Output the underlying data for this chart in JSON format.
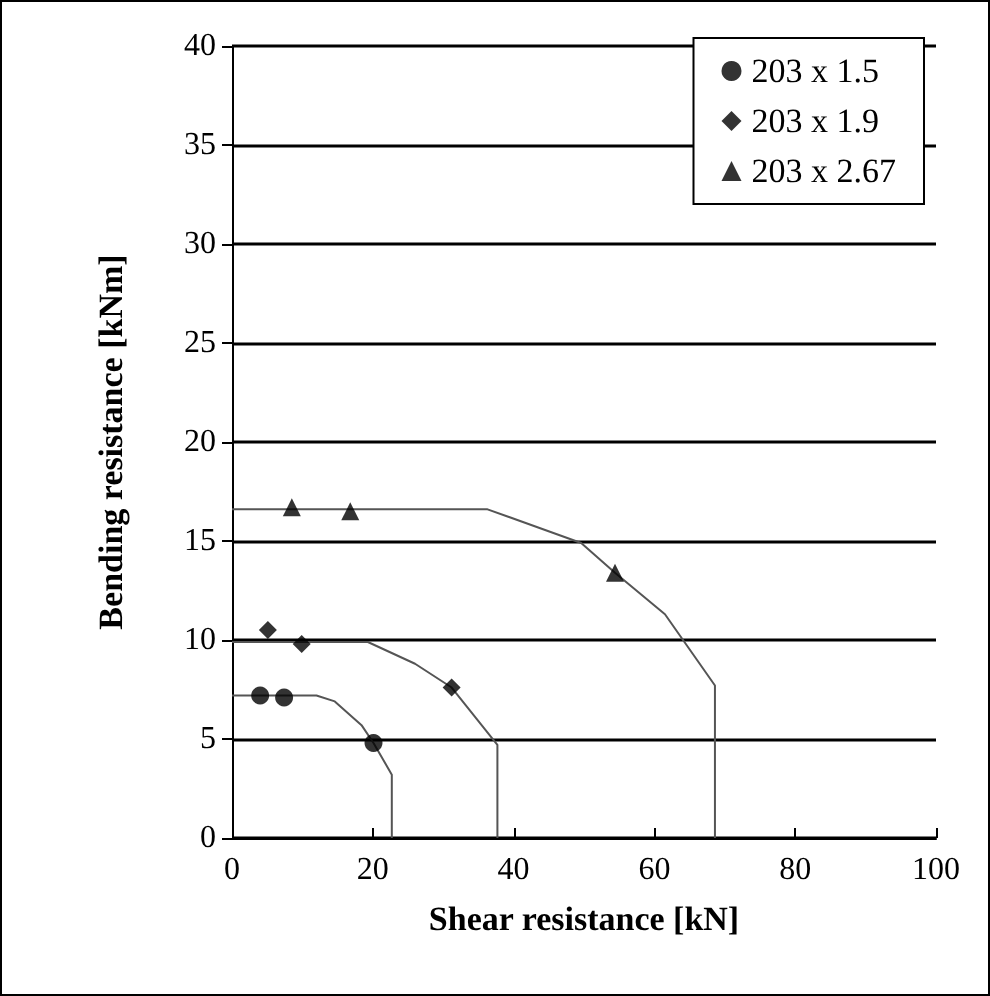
{
  "chart_data": {
    "type": "scatter",
    "xlabel": "Shear resistance [kN]",
    "ylabel": "Bending resistance [kNm]",
    "xlim": [
      0,
      100
    ],
    "xticks": [
      0,
      20,
      40,
      60,
      80,
      100
    ],
    "ylim": [
      0,
      40
    ],
    "yticks": [
      0,
      5,
      10,
      15,
      20,
      25,
      30,
      35,
      40
    ],
    "grid": "y",
    "legend": "top right",
    "series": [
      {
        "name": "203 x 1.5",
        "marker": "circle",
        "color": "#000000",
        "x": [
          4.0,
          7.4,
          20.1
        ],
        "values": [
          7.2,
          7.1,
          4.8
        ]
      },
      {
        "name": "203 x 1.9",
        "marker": "diamond",
        "color": "#000000",
        "x": [
          5.1,
          9.9,
          31.2
        ],
        "values": [
          10.5,
          9.8,
          7.6
        ]
      },
      {
        "name": "203 x 2.67",
        "marker": "triangle",
        "color": "#000000",
        "x": [
          8.5,
          16.8,
          54.4
        ],
        "values": [
          16.7,
          16.5,
          13.4
        ]
      },
      {
        "type": "line",
        "marker": "none",
        "color": "#555555",
        "x": [
          0,
          12,
          14.6,
          18.4,
          20.1,
          22.7,
          22.7
        ],
        "values": [
          7.2,
          7.2,
          6.9,
          5.7,
          4.8,
          3.2,
          0
        ]
      },
      {
        "type": "line",
        "marker": "none",
        "color": "#555555",
        "x": [
          0,
          19.3,
          26,
          31.2,
          37.7,
          37.7
        ],
        "values": [
          9.9,
          9.9,
          8.8,
          7.6,
          4.7,
          0
        ]
      },
      {
        "type": "line",
        "marker": "none",
        "color": "#555555",
        "x": [
          0,
          36.3,
          49.6,
          54.4,
          61.5,
          68.6,
          68.6
        ],
        "values": [
          16.6,
          16.6,
          14.9,
          13.4,
          11.3,
          7.7,
          0
        ]
      }
    ]
  }
}
